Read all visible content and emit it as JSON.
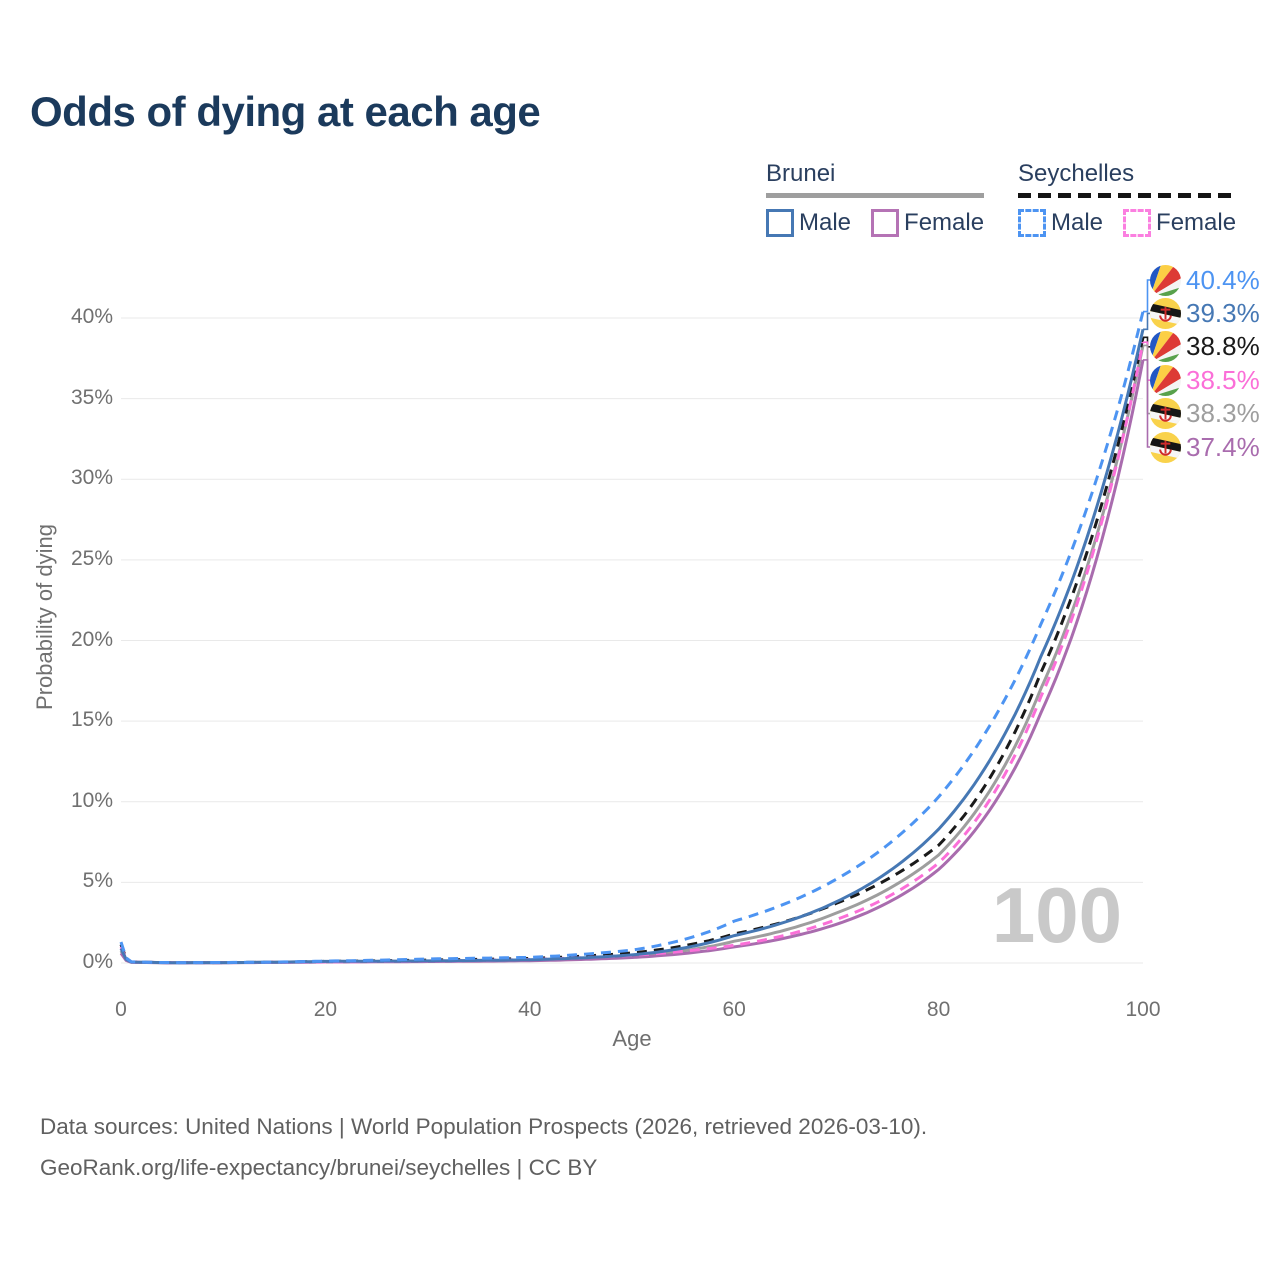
{
  "title": "Odds of dying at each age",
  "watermark_age": "100",
  "legend": {
    "groups": [
      {
        "name": "Brunei",
        "line_style": "solid",
        "underline_color": "#9e9e9e",
        "items": [
          {
            "label": "Male",
            "color": "#4678b4"
          },
          {
            "label": "Female",
            "color": "#b573b5"
          }
        ]
      },
      {
        "name": "Seychelles",
        "line_style": "dashed",
        "underline_color": "#141414",
        "items": [
          {
            "label": "Male",
            "color": "#4d94f2"
          },
          {
            "label": "Female",
            "color": "#fb7fe0"
          }
        ]
      }
    ]
  },
  "chart_data": {
    "type": "line",
    "title": "Odds of dying at each age",
    "xlabel": "Age",
    "ylabel": "Probability of dying",
    "xlim": [
      0,
      100
    ],
    "ylim": [
      0,
      42
    ],
    "x_ticks": [
      0,
      20,
      40,
      60,
      80,
      100
    ],
    "y_ticks": [
      0,
      5,
      10,
      15,
      20,
      25,
      30,
      35,
      40
    ],
    "y_tick_suffix": "%",
    "grid": "horizontal",
    "legend_position": "top-right",
    "hovered_x": "100",
    "ages": [
      0,
      1,
      5,
      10,
      20,
      30,
      40,
      50,
      60,
      70,
      80,
      90,
      100
    ],
    "series": [
      {
        "name": "Seychelles Male",
        "country": "Seychelles",
        "sex": "Male",
        "line": "dashed",
        "color": "#4d94f2",
        "values": [
          1.3,
          0.08,
          0.025,
          0.03,
          0.12,
          0.25,
          0.35,
          0.8,
          2.6,
          5.2,
          10.3,
          21.0,
          40.4
        ],
        "end_label": "40.4%"
      },
      {
        "name": "Brunei Male",
        "country": "Brunei",
        "sex": "Male",
        "line": "solid",
        "color": "#4678b4",
        "values": [
          0.9,
          0.06,
          0.02,
          0.025,
          0.1,
          0.13,
          0.2,
          0.5,
          1.7,
          3.8,
          8.3,
          19.0,
          39.3
        ],
        "end_label": "39.3%"
      },
      {
        "name": "Seychelles Both sexes",
        "country": "Seychelles",
        "sex": "Both",
        "line": "dashed",
        "color": "#1a1a1a",
        "values": [
          1.15,
          0.07,
          0.022,
          0.027,
          0.1,
          0.18,
          0.28,
          0.62,
          1.8,
          3.7,
          7.3,
          18.0,
          38.8
        ],
        "end_label": "38.8%"
      },
      {
        "name": "Seychelles Female",
        "country": "Seychelles",
        "sex": "Female",
        "line": "dashed",
        "color": "#fb6fd8",
        "values": [
          1.0,
          0.06,
          0.02,
          0.024,
          0.07,
          0.12,
          0.22,
          0.48,
          1.1,
          2.7,
          6.2,
          16.5,
          38.5
        ],
        "end_label": "38.5%"
      },
      {
        "name": "Brunei Both sexes",
        "country": "Brunei",
        "sex": "Both",
        "line": "solid",
        "color": "#9e9e9e",
        "values": [
          0.75,
          0.05,
          0.018,
          0.022,
          0.08,
          0.11,
          0.17,
          0.42,
          1.35,
          3.1,
          6.7,
          17.0,
          38.3
        ],
        "end_label": "38.3%"
      },
      {
        "name": "Brunei Female",
        "country": "Brunei",
        "sex": "Female",
        "line": "solid",
        "color": "#a96cae",
        "values": [
          0.6,
          0.045,
          0.016,
          0.02,
          0.06,
          0.09,
          0.14,
          0.34,
          1.0,
          2.4,
          5.8,
          15.5,
          37.4
        ],
        "end_label": "37.4%"
      }
    ]
  },
  "footer": {
    "line1": "Data sources: United Nations | World Population Prospects (2026, retrieved 2026-03-10).",
    "line2": "GeoRank.org/life-expectancy/brunei/seychelles | CC BY"
  }
}
